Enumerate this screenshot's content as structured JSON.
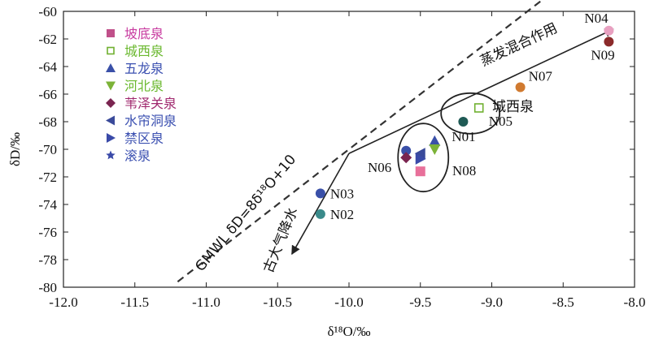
{
  "chart_data": {
    "type": "scatter",
    "xlabel": "δ¹⁸O/‰",
    "ylabel": "δD/‰",
    "xlim": [
      -12.0,
      -8.0
    ],
    "ylim": [
      -80,
      -60
    ],
    "x_ticks": [
      "-12.0",
      "-11.5",
      "-11.0",
      "-10.5",
      "-10.0",
      "-9.5",
      "-9.0",
      "-8.5",
      "-8.0"
    ],
    "y_ticks": [
      "-60",
      "-62",
      "-64",
      "-66",
      "-68",
      "-70",
      "-72",
      "-74",
      "-76",
      "-78",
      "-80"
    ],
    "grid": false,
    "legend_position": "top-left",
    "legend": [
      {
        "name": "坡底泉",
        "marker": "square",
        "color": "#c0508a",
        "text_color": "#c83ca0"
      },
      {
        "name": "城西泉",
        "marker": "square-open",
        "color": "#70b030",
        "text_color": "#6ab82e"
      },
      {
        "name": "五龙泉",
        "marker": "triangle-up",
        "color": "#3a50a8",
        "text_color": "#3a4fb0"
      },
      {
        "name": "河北泉",
        "marker": "triangle-down",
        "color": "#7cb338",
        "text_color": "#6ab82e"
      },
      {
        "name": "苇泽关泉",
        "marker": "diamond",
        "color": "#7a2450",
        "text_color": "#a0286e"
      },
      {
        "name": "水帘洞泉",
        "marker": "triangle-left",
        "color": "#3a4a9a",
        "text_color": "#3a4fb0"
      },
      {
        "name": "禁区泉",
        "marker": "triangle-right",
        "color": "#3a4aa8",
        "text_color": "#3a4fb0"
      },
      {
        "name": "滚泉",
        "marker": "star",
        "color": "#3a4aa8",
        "text_color": "#3a4fb0"
      }
    ],
    "points": [
      {
        "label": "N04",
        "x": -8.18,
        "y": -61.4,
        "color": "#e8a0c0",
        "marker": "circle"
      },
      {
        "label": "N09",
        "x": -8.18,
        "y": -62.2,
        "color": "#8b2a2a",
        "marker": "circle"
      },
      {
        "label": "N07",
        "x": -8.8,
        "y": -65.5,
        "color": "#d07a30",
        "marker": "circle"
      },
      {
        "label": "N05",
        "x": -9.09,
        "y": -67.0,
        "color": "#70b030",
        "marker": "square-open"
      },
      {
        "label": "N01",
        "x": -9.2,
        "y": -68.0,
        "color": "#1f5a55",
        "marker": "circle"
      },
      {
        "label": "",
        "x": -9.6,
        "y": -70.1,
        "color": "#3a50a8",
        "marker": "circle"
      },
      {
        "label": "",
        "x": -9.6,
        "y": -70.6,
        "color": "#7a2450",
        "marker": "diamond"
      },
      {
        "label": "",
        "x": -9.5,
        "y": -70.3,
        "color": "#3a4a9a",
        "marker": "triangle-left"
      },
      {
        "label": "",
        "x": -9.5,
        "y": -70.7,
        "color": "#3a4aa8",
        "marker": "triangle-right"
      },
      {
        "label": "",
        "x": -9.4,
        "y": -69.4,
        "color": "#3a50a8",
        "marker": "triangle-up"
      },
      {
        "label": "",
        "x": -9.4,
        "y": -70.0,
        "color": "#7cb338",
        "marker": "triangle-down"
      },
      {
        "label": "",
        "x": -9.5,
        "y": -71.6,
        "color": "#e8709a",
        "marker": "square"
      },
      {
        "label": "N03",
        "x": -10.2,
        "y": -73.2,
        "color": "#3a50a8",
        "marker": "circle"
      },
      {
        "label": "N02",
        "x": -10.2,
        "y": -74.7,
        "color": "#3a8a8a",
        "marker": "circle"
      }
    ],
    "group_labels": {
      "N06": "N06",
      "N08": "N08",
      "chengxi": "城西泉"
    },
    "gmwl": {
      "label": "GMWL δD=8δ¹⁸O+10",
      "slope": 8,
      "intercept": 10,
      "x_range": [
        -11.2,
        -8.6
      ]
    },
    "evap_line": {
      "label": "蒸发混合作用",
      "from": [
        -10.0,
        -70.3
      ],
      "to": [
        -8.15,
        -61.3
      ]
    },
    "paleo_line": {
      "label": "古大气降水",
      "from": [
        -10.0,
        -70.3
      ],
      "to": [
        -10.4,
        -77.6
      ]
    }
  }
}
